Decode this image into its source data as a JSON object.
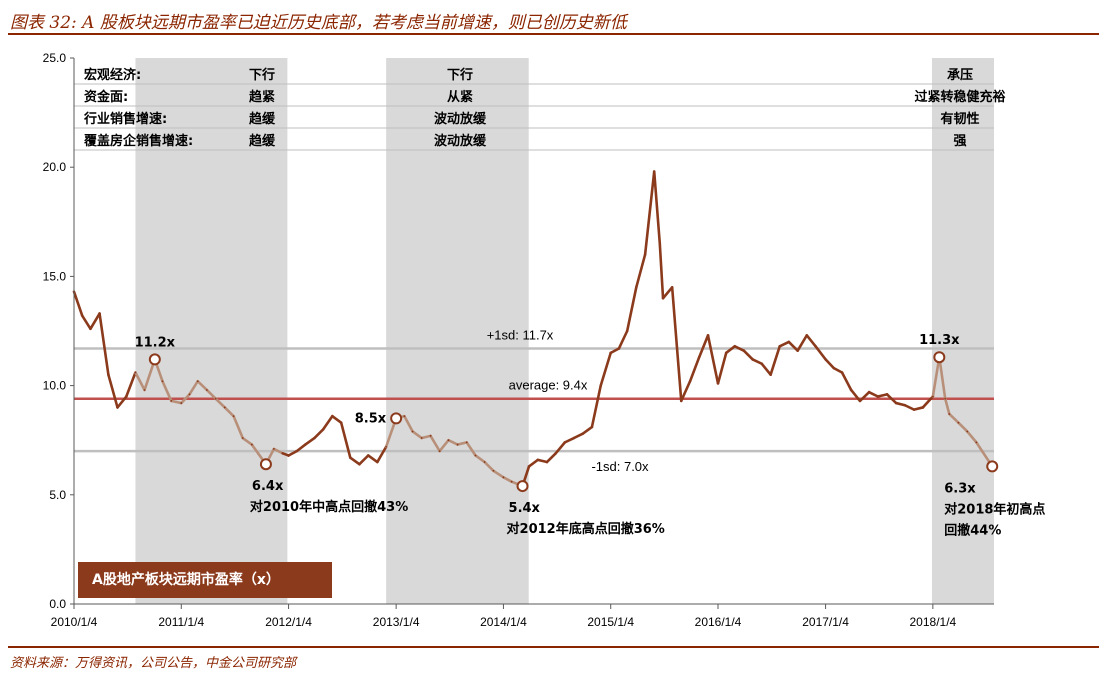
{
  "figure_title": "图表 32: A 股板块远期市盈率已迫近历史底部，若考虑当前增速，则已创历史新低",
  "source": "资料来源：万得资讯，公司公告，中金公司研究部",
  "legend_label": "A股地产板块远期市盈率（x）",
  "colors": {
    "accent": "#8B2500",
    "series_dark": "#8B3A1C",
    "series_light": "#B8907A",
    "average_line": "#C0504D",
    "sd_line": "#BFBFBF",
    "shade": "#D9D9D9",
    "legend_bg": "#8B3A1C"
  },
  "panel": {
    "rows": [
      {
        "label": "宏观经济:",
        "cols": [
          "下行",
          "下行",
          "承压"
        ]
      },
      {
        "label": "资金面:",
        "cols": [
          "趋紧",
          "从紧",
          "过紧转稳健充裕"
        ]
      },
      {
        "label": "行业销售增速:",
        "cols": [
          "趋缓",
          "波动放缓",
          "有韧性"
        ]
      },
      {
        "label": "覆盖房企销售增速:",
        "cols": [
          "趋缓",
          "波动放缓",
          "强"
        ]
      }
    ]
  },
  "chart_data": {
    "type": "line",
    "x_type": "date",
    "y_ticks": [
      "0.0",
      "5.0",
      "10.0",
      "15.0",
      "20.0",
      "25.0"
    ],
    "x_ticks": [
      "2010/1/4",
      "2011/1/4",
      "2012/1/4",
      "2013/1/4",
      "2014/1/4",
      "2015/1/4",
      "2016/1/4",
      "2017/1/4",
      "2018/1/4"
    ],
    "ylim": [
      0,
      25
    ],
    "xlim": [
      "2010-01-04",
      "2018-07-31"
    ],
    "shaded_periods": [
      [
        "2010-08-01",
        "2011-12-31"
      ],
      [
        "2012-12-01",
        "2014-03-31"
      ],
      [
        "2018-01-01",
        "2018-07-31"
      ]
    ],
    "reference_lines": [
      {
        "label": "+1sd: 11.7x",
        "value": 11.7,
        "style": "sd"
      },
      {
        "label": "average: 9.4x",
        "value": 9.4,
        "style": "average"
      },
      {
        "label": "-1sd: 7.0x",
        "value": 7.0,
        "style": "sd"
      }
    ],
    "series": [
      {
        "points": [
          [
            "2010-01-04",
            14.3
          ],
          [
            "2010-02-01",
            13.2
          ],
          [
            "2010-03-01",
            12.6
          ],
          [
            "2010-04-01",
            13.3
          ],
          [
            "2010-05-01",
            10.5
          ],
          [
            "2010-06-01",
            9.0
          ],
          [
            "2010-07-01",
            9.5
          ],
          [
            "2010-08-01",
            10.6
          ],
          [
            "2010-09-01",
            9.8
          ],
          [
            "2010-10-06",
            11.2
          ],
          [
            "2010-11-01",
            10.2
          ],
          [
            "2010-12-01",
            9.3
          ],
          [
            "2011-01-04",
            9.2
          ],
          [
            "2011-02-01",
            9.6
          ],
          [
            "2011-03-01",
            10.2
          ],
          [
            "2011-04-01",
            9.8
          ],
          [
            "2011-05-01",
            9.4
          ],
          [
            "2011-06-01",
            9.0
          ],
          [
            "2011-07-01",
            8.6
          ],
          [
            "2011-08-01",
            7.6
          ],
          [
            "2011-09-01",
            7.3
          ],
          [
            "2011-10-19",
            6.4
          ],
          [
            "2011-11-15",
            7.1
          ],
          [
            "2011-12-15",
            6.9
          ],
          [
            "2012-01-04",
            6.8
          ],
          [
            "2012-02-01",
            7.0
          ],
          [
            "2012-03-01",
            7.3
          ],
          [
            "2012-04-01",
            7.6
          ],
          [
            "2012-05-01",
            8.0
          ],
          [
            "2012-06-01",
            8.6
          ],
          [
            "2012-07-01",
            8.3
          ],
          [
            "2012-08-01",
            6.7
          ],
          [
            "2012-09-01",
            6.4
          ],
          [
            "2012-10-01",
            6.8
          ],
          [
            "2012-11-01",
            6.5
          ],
          [
            "2012-12-01",
            7.2
          ],
          [
            "2013-01-04",
            8.5
          ],
          [
            "2013-02-01",
            8.6
          ],
          [
            "2013-03-01",
            7.9
          ],
          [
            "2013-04-01",
            7.6
          ],
          [
            "2013-05-01",
            7.7
          ],
          [
            "2013-06-01",
            7.0
          ],
          [
            "2013-07-01",
            7.5
          ],
          [
            "2013-08-01",
            7.3
          ],
          [
            "2013-09-01",
            7.4
          ],
          [
            "2013-10-01",
            6.8
          ],
          [
            "2013-11-01",
            6.5
          ],
          [
            "2013-12-01",
            6.1
          ],
          [
            "2014-01-04",
            5.8
          ],
          [
            "2014-02-01",
            5.6
          ],
          [
            "2014-03-10",
            5.4
          ],
          [
            "2014-04-01",
            6.3
          ],
          [
            "2014-05-01",
            6.6
          ],
          [
            "2014-06-01",
            6.5
          ],
          [
            "2014-07-01",
            6.9
          ],
          [
            "2014-08-01",
            7.4
          ],
          [
            "2014-09-01",
            7.6
          ],
          [
            "2014-10-01",
            7.8
          ],
          [
            "2014-11-01",
            8.1
          ],
          [
            "2014-12-01",
            10.0
          ],
          [
            "2015-01-04",
            11.5
          ],
          [
            "2015-02-01",
            11.7
          ],
          [
            "2015-03-01",
            12.5
          ],
          [
            "2015-04-01",
            14.5
          ],
          [
            "2015-05-01",
            16.0
          ],
          [
            "2015-06-01",
            19.8
          ],
          [
            "2015-06-20",
            16.5
          ],
          [
            "2015-07-01",
            14.0
          ],
          [
            "2015-08-01",
            14.5
          ],
          [
            "2015-09-01",
            9.3
          ],
          [
            "2015-10-01",
            10.2
          ],
          [
            "2015-11-01",
            11.3
          ],
          [
            "2015-12-01",
            12.3
          ],
          [
            "2016-01-04",
            10.1
          ],
          [
            "2016-02-01",
            11.5
          ],
          [
            "2016-03-01",
            11.8
          ],
          [
            "2016-04-01",
            11.6
          ],
          [
            "2016-05-01",
            11.2
          ],
          [
            "2016-06-01",
            11.0
          ],
          [
            "2016-07-01",
            10.5
          ],
          [
            "2016-08-01",
            11.8
          ],
          [
            "2016-09-01",
            12.0
          ],
          [
            "2016-10-01",
            11.6
          ],
          [
            "2016-11-01",
            12.3
          ],
          [
            "2016-12-01",
            11.8
          ],
          [
            "2017-01-04",
            11.2
          ],
          [
            "2017-02-01",
            10.8
          ],
          [
            "2017-03-01",
            10.6
          ],
          [
            "2017-04-01",
            9.8
          ],
          [
            "2017-05-01",
            9.3
          ],
          [
            "2017-06-01",
            9.7
          ],
          [
            "2017-07-01",
            9.5
          ],
          [
            "2017-08-01",
            9.6
          ],
          [
            "2017-09-01",
            9.2
          ],
          [
            "2017-10-01",
            9.1
          ],
          [
            "2017-11-01",
            8.9
          ],
          [
            "2017-12-01",
            9.0
          ],
          [
            "2018-01-04",
            9.5
          ],
          [
            "2018-01-26",
            11.3
          ],
          [
            "2018-02-15",
            9.4
          ],
          [
            "2018-03-01",
            8.7
          ],
          [
            "2018-04-01",
            8.3
          ],
          [
            "2018-05-01",
            7.9
          ],
          [
            "2018-06-01",
            7.4
          ],
          [
            "2018-07-25",
            6.3
          ]
        ]
      }
    ],
    "annotations": [
      {
        "date": "2010-10-06",
        "value": 11.2,
        "text": [
          "11.2x"
        ],
        "anchor": "above"
      },
      {
        "date": "2011-10-19",
        "value": 6.4,
        "text": [
          "6.4x",
          "对2010年中高点回撤43%"
        ],
        "anchor": "below"
      },
      {
        "date": "2013-01-04",
        "value": 8.5,
        "text": [
          "8.5x"
        ],
        "anchor": "left"
      },
      {
        "date": "2014-03-10",
        "value": 5.4,
        "text": [
          "5.4x",
          "对2012年底高点回撤36%"
        ],
        "anchor": "below"
      },
      {
        "date": "2018-01-26",
        "value": 11.3,
        "text": [
          "11.3x"
        ],
        "anchor": "above"
      },
      {
        "date": "2018-07-25",
        "value": 6.3,
        "text": [
          "6.3x",
          "对2018年初高点",
          "回撤44%"
        ],
        "anchor": "below-left"
      }
    ]
  }
}
